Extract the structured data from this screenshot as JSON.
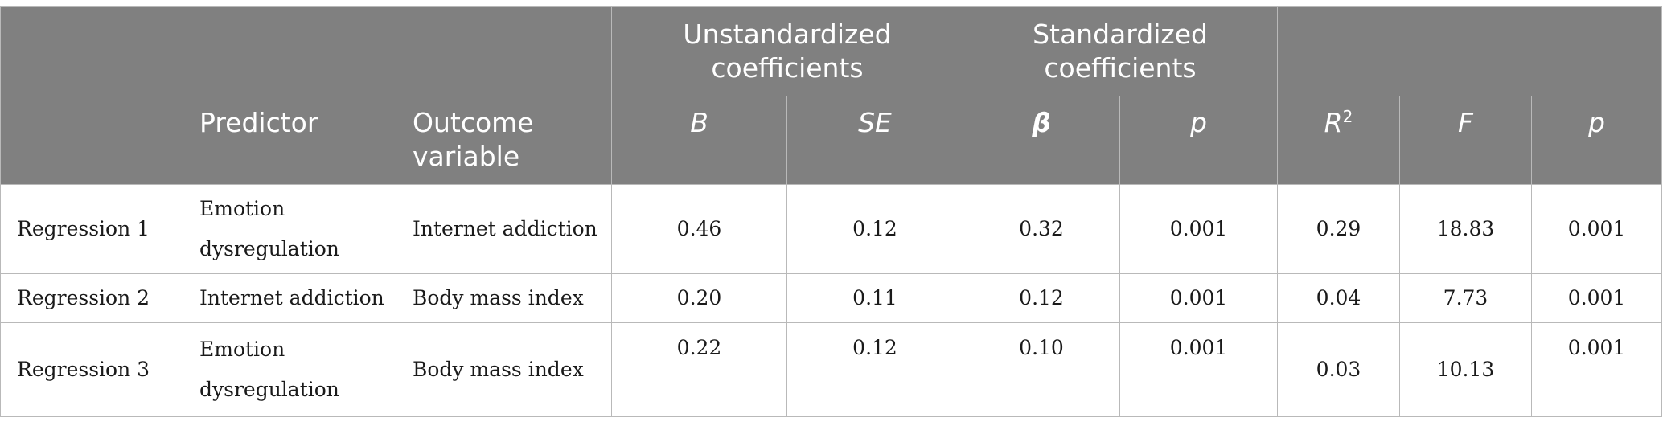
{
  "header": {
    "group_unstd": "Unstandardized coefficients",
    "group_std": "Standardized coefficients",
    "col_predictor": "Predictor",
    "col_outcome": "Outcome variable",
    "col_b": "B",
    "col_se": "SE",
    "col_beta": "β",
    "col_p_std": "p",
    "col_r": "R",
    "col_r_sup": "2",
    "col_f": "F",
    "col_p_model": "p"
  },
  "rows": [
    {
      "label": "Regression 1",
      "predictor": "Emotion dysregulation",
      "outcome": "Internet addiction",
      "b": "0.46",
      "se": "0.12",
      "beta": "0.32",
      "p": "0.001",
      "r2": "0.29",
      "f": "18.83",
      "p_model": "0.001"
    },
    {
      "label": "Regression 2",
      "predictor": "Internet addiction",
      "outcome": "Body mass index",
      "b": "0.20",
      "se": "0.11",
      "beta": "0.12",
      "p": "0.001",
      "r2": "0.04",
      "f": "7.73",
      "p_model": "0.001"
    },
    {
      "label": "Regression 3",
      "predictor": "Emotion dysregulation",
      "outcome": "Body mass index",
      "b": "0.22",
      "se": "0.12",
      "beta": "0.10",
      "p": "0.001",
      "r2": "0.03",
      "f": "10.13",
      "p_model": "0.001"
    }
  ]
}
